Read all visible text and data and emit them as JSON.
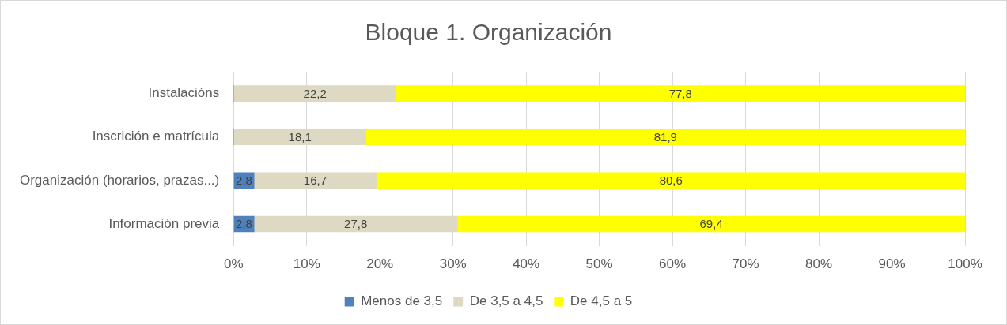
{
  "chart_data": {
    "type": "bar",
    "orientation": "horizontal",
    "stacked": true,
    "title": "Bloque 1. Organización",
    "categories": [
      "Instalacións",
      "Inscrición e matrícula",
      "Organización (horarios, prazas...)",
      "Información previa"
    ],
    "series": [
      {
        "name": "Menos de 3,5",
        "color": "#4f81bd",
        "values": [
          0,
          0,
          2.8,
          2.8
        ],
        "value_labels": [
          null,
          null,
          "2,8",
          "2,8"
        ]
      },
      {
        "name": "De 3,5 a 4,5",
        "color": "#ddd9c3",
        "values": [
          22.2,
          18.1,
          16.7,
          27.8
        ],
        "value_labels": [
          "22,2",
          "18,1",
          "16,7",
          "27,8"
        ]
      },
      {
        "name": "De 4,5 a 5",
        "color": "#ffff00",
        "values": [
          77.8,
          81.9,
          80.6,
          69.4
        ],
        "value_labels": [
          "77,8",
          "81,9",
          "80,6",
          "69,4"
        ]
      }
    ],
    "xlim": [
      0,
      100
    ],
    "xticks": [
      {
        "value": 0,
        "label": "0%"
      },
      {
        "value": 10,
        "label": "10%"
      },
      {
        "value": 20,
        "label": "20%"
      },
      {
        "value": 30,
        "label": "30%"
      },
      {
        "value": 40,
        "label": "40%"
      },
      {
        "value": 50,
        "label": "50%"
      },
      {
        "value": 60,
        "label": "60%"
      },
      {
        "value": 70,
        "label": "70%"
      },
      {
        "value": 80,
        "label": "80%"
      },
      {
        "value": 90,
        "label": "90%"
      },
      {
        "value": 100,
        "label": "100%"
      }
    ],
    "grid": "x",
    "legend": "bottom"
  }
}
